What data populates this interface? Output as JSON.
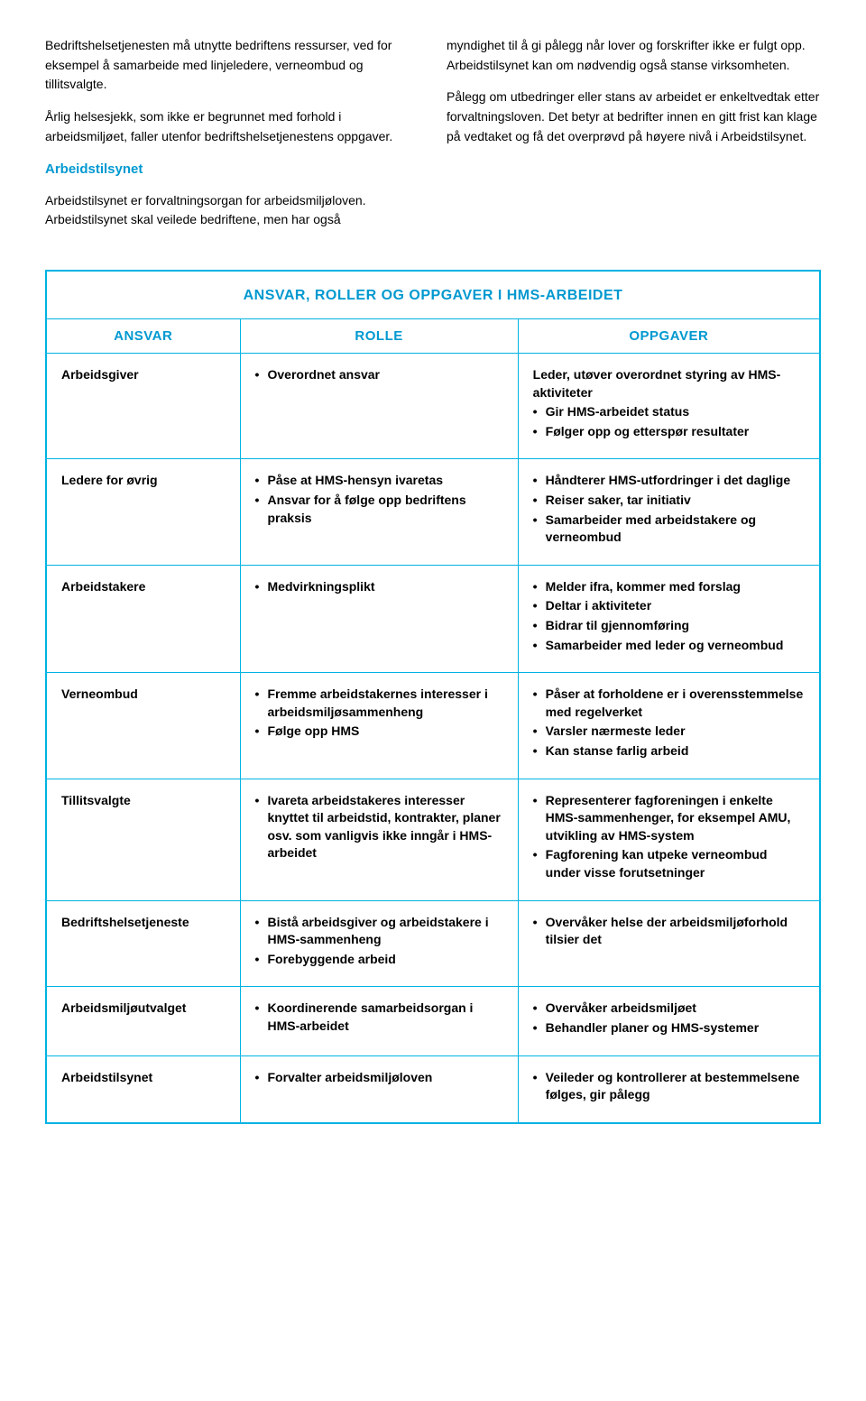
{
  "colors": {
    "accent": "#0099d0",
    "border": "#00b3e3",
    "text": "#000000",
    "background": "#ffffff"
  },
  "fontsize": {
    "body": 14,
    "heading": 15,
    "tableTitle": 16
  },
  "leftColumn": {
    "p1": "Bedriftshelsetjenesten må utnytte bedriftens ressurser, ved for eksempel å samarbeide med linjeledere, verneombud og tillitsvalgte.",
    "p2": "Årlig helsesjekk, som ikke er begrunnet med forhold i arbeidsmiljøet, faller utenfor bedriftshelsetjenestens oppgaver.",
    "heading": "Arbeidstilsynet",
    "p3": "Arbeidstilsynet er forvaltningsorgan for arbeidsmiljøloven. Arbeidstilsynet skal veilede bedriftene, men har også"
  },
  "rightColumn": {
    "p1": "myndighet til å gi pålegg når lover og forskrifter ikke er fulgt opp. Arbeidstilsynet kan om nødvendig også stanse virksomheten.",
    "p2": "Pålegg om utbedringer eller stans av arbeidet er enkeltvedtak etter forvaltningsloven. Det betyr at bedrifter innen en gitt frist kan klage på vedtaket og få det overprøvd på høyere nivå i Arbeidstilsynet."
  },
  "table": {
    "title": "ANSVAR, ROLLER OG OPPGAVER I HMS-ARBEIDET",
    "headers": {
      "col1": "ANSVAR",
      "col2": "ROLLE",
      "col3": "OPPGAVER"
    },
    "rows": [
      {
        "ansvar": "Arbeidsgiver",
        "rolle": [
          "Overordnet ansvar"
        ],
        "oppgaverLead": "Leder, utøver overordnet styring av HMS-aktiviteter",
        "oppgaver": [
          "Gir HMS-arbeidet status",
          "Følger opp og etterspør resultater"
        ]
      },
      {
        "ansvar": "Ledere for øvrig",
        "rolle": [
          "Påse at HMS-hensyn ivaretas",
          "Ansvar for å følge opp bedriftens praksis"
        ],
        "oppgaver": [
          "Håndterer HMS-utfordringer i det daglige",
          "Reiser saker, tar initiativ",
          "Samarbeider med arbeidstakere og verneombud"
        ]
      },
      {
        "ansvar": "Arbeidstakere",
        "rolle": [
          "Medvirkningsplikt"
        ],
        "oppgaver": [
          "Melder ifra, kommer med forslag",
          "Deltar i aktiviteter",
          "Bidrar til gjennomføring",
          "Samarbeider med leder og verneombud"
        ]
      },
      {
        "ansvar": "Verneombud",
        "rolle": [
          "Fremme arbeidstakernes interesser i arbeidsmiljøsammenheng",
          "Følge opp HMS"
        ],
        "oppgaver": [
          "Påser at forholdene er i overensstemmelse med regelverket",
          "Varsler nærmeste leder",
          "Kan stanse farlig arbeid"
        ]
      },
      {
        "ansvar": "Tillitsvalgte",
        "rolle": [
          "Ivareta arbeidstakeres interesser knyttet til arbeidstid, kontrakter, planer osv. som vanligvis ikke inngår i HMS-arbeidet"
        ],
        "oppgaver": [
          "Representerer fagforeningen i enkelte HMS-sammenhenger, for eksempel AMU, utvikling av HMS-system",
          "Fagforening kan utpeke verneombud under visse forutsetninger"
        ]
      },
      {
        "ansvar": "Bedriftshelsetjeneste",
        "rolle": [
          "Bistå arbeidsgiver og arbeidstakere i HMS-sammenheng",
          "Forebyggende arbeid"
        ],
        "oppgaver": [
          "Overvåker helse der arbeidsmiljøforhold tilsier det"
        ]
      },
      {
        "ansvar": "Arbeidsmiljøutvalget",
        "rolle": [
          "Koordinerende samarbeidsorgan i HMS-arbeidet"
        ],
        "oppgaver": [
          "Overvåker arbeidsmiljøet",
          "Behandler planer og HMS-systemer"
        ]
      },
      {
        "ansvar": "Arbeidstilsynet",
        "rolle": [
          "Forvalter arbeidsmiljøloven"
        ],
        "oppgaver": [
          "Veileder og kontrollerer at bestemmelsene følges, gir pålegg"
        ]
      }
    ]
  }
}
